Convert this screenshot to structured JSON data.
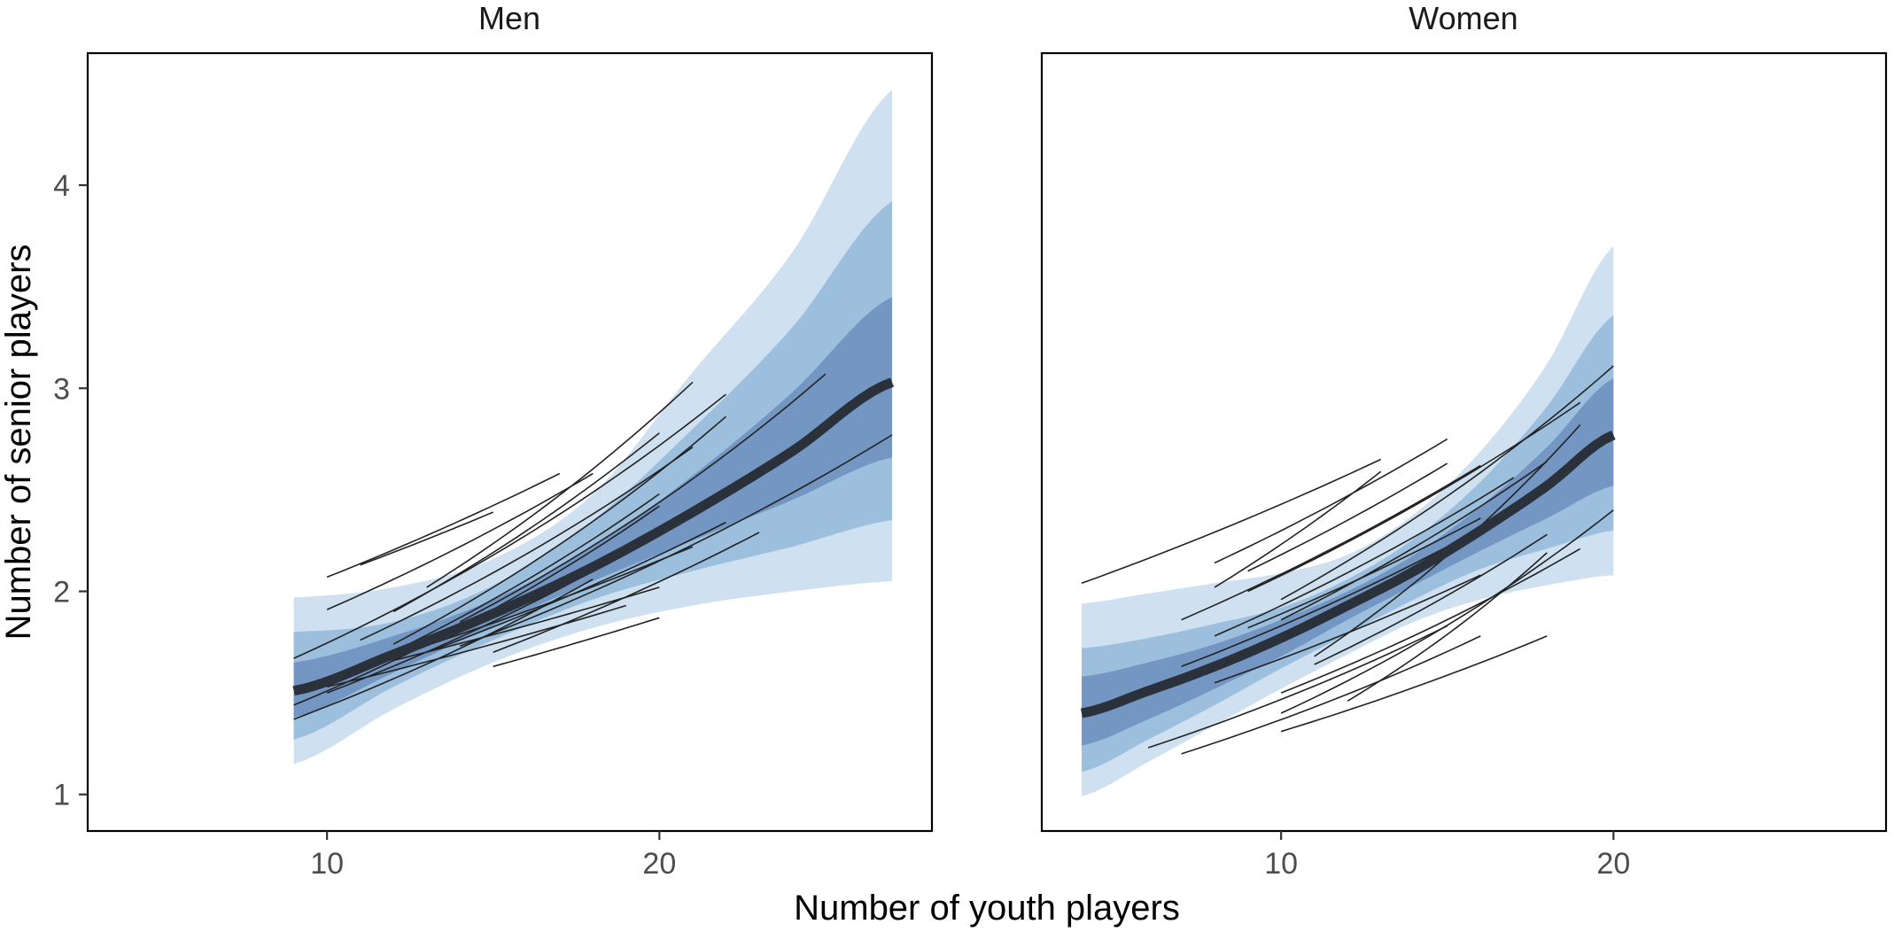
{
  "chart_data": {
    "type": "line",
    "xlabel": "Number of youth players",
    "ylabel": "Number of senior players",
    "xlim": [
      2.8,
      28.2
    ],
    "ylim": [
      0.82,
      4.65
    ],
    "xticks": [
      10,
      20
    ],
    "yticks": [
      1,
      2,
      3,
      4
    ],
    "grid": false,
    "band_colors": [
      "#cfe1f0",
      "#9cbfdd",
      "#7396c3"
    ],
    "mean_color": "#2a313a",
    "group_line_color": "#222222",
    "panels": [
      {
        "title": "Men",
        "x_range": [
          9,
          27
        ],
        "mean": {
          "x": [
            9,
            12,
            15,
            18,
            21,
            24,
            27
          ],
          "y": [
            1.51,
            1.69,
            1.89,
            2.12,
            2.39,
            2.69,
            3.03
          ]
        },
        "bands": [
          {
            "level": "outer",
            "lower": [
              1.15,
              1.42,
              1.65,
              1.82,
              1.93,
              2.0,
              2.05
            ],
            "upper": [
              1.97,
              2.02,
              2.16,
              2.48,
              3.08,
              3.67,
              4.47
            ]
          },
          {
            "level": "middle",
            "lower": [
              1.27,
              1.53,
              1.76,
              1.96,
              2.1,
              2.22,
              2.35
            ],
            "upper": [
              1.8,
              1.85,
              2.03,
              2.35,
              2.8,
              3.3,
              3.92
            ]
          },
          {
            "level": "inner",
            "lower": [
              1.38,
              1.6,
              1.83,
              2.05,
              2.25,
              2.45,
              2.66
            ],
            "upper": [
              1.65,
              1.78,
              1.96,
              2.22,
              2.57,
              2.98,
              3.45
            ]
          }
        ],
        "group_lines": [
          {
            "x": [
              10,
              17
            ],
            "y": [
              2.07,
              2.58
            ]
          },
          {
            "x": [
              11,
              15
            ],
            "y": [
              2.13,
              2.39
            ]
          },
          {
            "x": [
              10,
              18
            ],
            "y": [
              1.91,
              2.58
            ]
          },
          {
            "x": [
              13,
              21
            ],
            "y": [
              2.02,
              3.03
            ]
          },
          {
            "x": [
              12,
              20
            ],
            "y": [
              1.9,
              2.78
            ]
          },
          {
            "x": [
              9,
              22
            ],
            "y": [
              1.67,
              2.97
            ]
          },
          {
            "x": [
              11,
              21
            ],
            "y": [
              1.76,
              2.71
            ]
          },
          {
            "x": [
              12,
              22
            ],
            "y": [
              1.74,
              2.86
            ]
          },
          {
            "x": [
              10,
              20
            ],
            "y": [
              1.55,
              2.48
            ]
          },
          {
            "x": [
              9,
              20
            ],
            "y": [
              1.44,
              2.42
            ]
          },
          {
            "x": [
              14,
              25
            ],
            "y": [
              1.85,
              3.07
            ]
          },
          {
            "x": [
              10,
              23
            ],
            "y": [
              1.5,
              2.59
            ]
          },
          {
            "x": [
              13,
              22
            ],
            "y": [
              1.7,
              2.34
            ]
          },
          {
            "x": [
              11,
              21
            ],
            "y": [
              1.63,
              2.22
            ]
          },
          {
            "x": [
              9,
              18
            ],
            "y": [
              1.37,
              2.06
            ]
          },
          {
            "x": [
              12,
              20
            ],
            "y": [
              1.66,
              2.02
            ]
          },
          {
            "x": [
              14,
              27
            ],
            "y": [
              1.73,
              2.77
            ]
          },
          {
            "x": [
              10,
              19
            ],
            "y": [
              1.53,
              1.93
            ]
          },
          {
            "x": [
              15,
              23
            ],
            "y": [
              1.7,
              2.29
            ]
          },
          {
            "x": [
              15,
              20
            ],
            "y": [
              1.63,
              1.87
            ]
          }
        ]
      },
      {
        "title": "Women",
        "x_range": [
          4,
          20
        ],
        "mean": {
          "x": [
            4,
            6,
            8,
            10,
            12,
            14,
            16,
            18,
            20
          ],
          "y": [
            1.4,
            1.51,
            1.63,
            1.77,
            1.93,
            2.1,
            2.3,
            2.52,
            2.77
          ]
        },
        "bands": [
          {
            "level": "outer",
            "lower": [
              0.99,
              1.16,
              1.34,
              1.52,
              1.69,
              1.85,
              1.96,
              2.03,
              2.08
            ],
            "upper": [
              1.94,
              1.99,
              2.04,
              2.09,
              2.18,
              2.38,
              2.69,
              3.12,
              3.7
            ]
          },
          {
            "level": "middle",
            "lower": [
              1.11,
              1.27,
              1.44,
              1.62,
              1.79,
              1.96,
              2.11,
              2.21,
              2.3
            ],
            "upper": [
              1.72,
              1.77,
              1.84,
              1.92,
              2.06,
              2.26,
              2.54,
              2.91,
              3.36
            ]
          },
          {
            "level": "inner",
            "lower": [
              1.24,
              1.37,
              1.52,
              1.68,
              1.86,
              2.03,
              2.2,
              2.36,
              2.52
            ],
            "upper": [
              1.58,
              1.65,
              1.74,
              1.86,
              2.0,
              2.18,
              2.42,
              2.71,
              3.05
            ]
          }
        ],
        "group_lines": [
          {
            "x": [
              4,
              13
            ],
            "y": [
              2.04,
              2.65
            ]
          },
          {
            "x": [
              8,
              15
            ],
            "y": [
              2.14,
              2.75
            ]
          },
          {
            "x": [
              8,
              13
            ],
            "y": [
              2.02,
              2.59
            ]
          },
          {
            "x": [
              9,
              15
            ],
            "y": [
              2.1,
              2.63
            ]
          },
          {
            "x": [
              7,
              16
            ],
            "y": [
              1.86,
              2.62
            ]
          },
          {
            "x": [
              9,
              19
            ],
            "y": [
              2.0,
              2.93
            ]
          },
          {
            "x": [
              10,
              20
            ],
            "y": [
              1.96,
              3.11
            ]
          },
          {
            "x": [
              8,
              17
            ],
            "y": [
              1.78,
              2.56
            ]
          },
          {
            "x": [
              9,
              16
            ],
            "y": [
              1.82,
              2.36
            ]
          },
          {
            "x": [
              10,
              18
            ],
            "y": [
              1.86,
              2.64
            ]
          },
          {
            "x": [
              7,
              15
            ],
            "y": [
              1.63,
              2.22
            ]
          },
          {
            "x": [
              11,
              19
            ],
            "y": [
              1.68,
              2.82
            ]
          },
          {
            "x": [
              8,
              16
            ],
            "y": [
              1.55,
              2.08
            ]
          },
          {
            "x": [
              11,
              18
            ],
            "y": [
              1.64,
              2.28
            ]
          },
          {
            "x": [
              10,
              19
            ],
            "y": [
              1.5,
              2.21
            ]
          },
          {
            "x": [
              6,
              15
            ],
            "y": [
              1.23,
              1.83
            ]
          },
          {
            "x": [
              10,
              20
            ],
            "y": [
              1.4,
              2.4
            ]
          },
          {
            "x": [
              7,
              16
            ],
            "y": [
              1.2,
              1.78
            ]
          },
          {
            "x": [
              10,
              18
            ],
            "y": [
              1.31,
              1.78
            ]
          },
          {
            "x": [
              12,
              18
            ],
            "y": [
              1.46,
              2.19
            ]
          }
        ]
      }
    ]
  }
}
